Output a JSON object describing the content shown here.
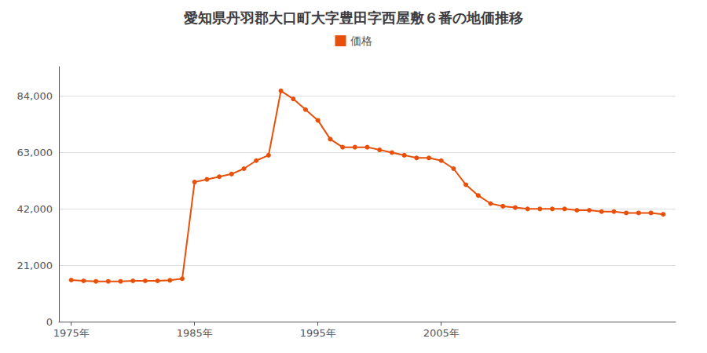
{
  "chart_data": {
    "type": "line",
    "title": "愛知県丹羽郡大口町大字豊田字西屋敷６番の地価推移",
    "x": [
      1975,
      1976,
      1977,
      1978,
      1979,
      1980,
      1981,
      1982,
      1983,
      1984,
      1985,
      1986,
      1987,
      1988,
      1989,
      1990,
      1991,
      1992,
      1993,
      1994,
      1995,
      1996,
      1997,
      1998,
      1999,
      2000,
      2001,
      2002,
      2003,
      2004,
      2005,
      2006,
      2007,
      2008,
      2009,
      2010,
      2011,
      2012,
      2013,
      2014,
      2015,
      2016,
      2017,
      2018,
      2019,
      2020,
      2021,
      2022,
      2023
    ],
    "series": [
      {
        "name": "価格",
        "color": "#e8500a",
        "values": [
          15500,
          15200,
          15000,
          15000,
          15000,
          15200,
          15200,
          15200,
          15400,
          16000,
          52000,
          53000,
          54000,
          55000,
          57000,
          60000,
          62000,
          86000,
          83000,
          79000,
          75000,
          68000,
          65000,
          65000,
          65000,
          64000,
          63000,
          62000,
          61000,
          61000,
          60000,
          57000,
          51000,
          47000,
          44000,
          43000,
          42500,
          42000,
          42000,
          42000,
          42000,
          41500,
          41500,
          41000,
          41000,
          40500,
          40500,
          40500,
          40000
        ]
      }
    ],
    "xlim": [
      1974,
      2024
    ],
    "xticks": [
      {
        "value": 1975,
        "label": "1975年"
      },
      {
        "value": 1985,
        "label": "1985年"
      },
      {
        "value": 1995,
        "label": "1995年"
      },
      {
        "value": 2005,
        "label": "2005年"
      }
    ],
    "ylim": [
      0,
      95000
    ],
    "yticks": [
      0,
      {
        "value": 21000,
        "label": "21,000"
      },
      {
        "value": 42000,
        "label": "42,000"
      },
      {
        "value": 63000,
        "label": "63,000"
      },
      {
        "value": 84000,
        "label": "84,000"
      }
    ],
    "grid": true,
    "legend": "top",
    "marker": "circle"
  }
}
